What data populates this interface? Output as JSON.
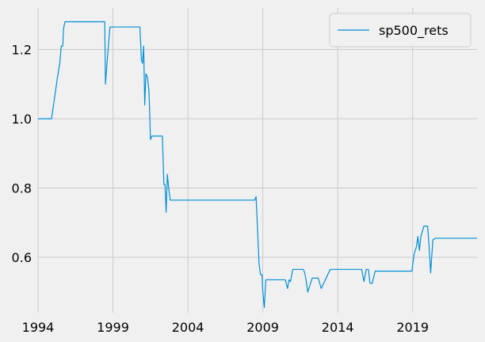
{
  "chart_data": {
    "type": "line",
    "title": "",
    "xlabel": "",
    "ylabel": "",
    "xlim": [
      1994.0,
      2023.3
    ],
    "ylim": [
      0.44,
      1.32
    ],
    "grid": true,
    "legend_position": "top-right",
    "x_ticks": [
      1994,
      1999,
      2004,
      2009,
      2014,
      2019
    ],
    "x_tick_labels": [
      "1994",
      "1999",
      "2004",
      "2009",
      "2014",
      "2019"
    ],
    "y_ticks": [
      0.6,
      0.8,
      1.0,
      1.2
    ],
    "y_tick_labels": [
      "0.6",
      "0.8",
      "1.0",
      "1.2"
    ],
    "series": [
      {
        "name": "sp500_rets",
        "color": "#008fd5",
        "x": [
          1994.0,
          1994.9,
          1995.1,
          1995.3,
          1995.45,
          1995.55,
          1995.65,
          1995.7,
          1995.8,
          1995.9,
          1996.0,
          1996.5,
          1997.0,
          1997.5,
          1998.0,
          1998.45,
          1998.5,
          1998.6,
          1998.8,
          1999.0,
          1999.5,
          2000.0,
          2000.5,
          2000.8,
          2000.9,
          2000.97,
          2001.05,
          2001.12,
          2001.2,
          2001.3,
          2001.4,
          2001.45,
          2001.5,
          2001.6,
          2002.0,
          2002.3,
          2002.4,
          2002.47,
          2002.55,
          2002.63,
          2002.72,
          2002.82,
          2003.0,
          2004.0,
          2005.0,
          2006.0,
          2007.0,
          2008.0,
          2008.45,
          2008.55,
          2008.65,
          2008.75,
          2008.85,
          2008.95,
          2009.0,
          2009.1,
          2009.2,
          2009.5,
          2010.0,
          2010.5,
          2010.65,
          2010.75,
          2010.85,
          2011.0,
          2011.5,
          2011.7,
          2011.8,
          2011.9,
          2012.0,
          2012.3,
          2012.4,
          2012.5,
          2012.7,
          2012.9,
          2013.5,
          2014.0,
          2014.5,
          2015.0,
          2015.5,
          2015.6,
          2015.75,
          2015.9,
          2016.05,
          2016.15,
          2016.3,
          2016.5,
          2017.0,
          2017.5,
          2018.0,
          2018.5,
          2018.8,
          2018.95,
          2019.1,
          2019.25,
          2019.35,
          2019.45,
          2019.55,
          2019.65,
          2019.75,
          2019.85,
          2020.0,
          2020.1,
          2020.2,
          2020.35,
          2020.5,
          2021.0,
          2022.0,
          2023.3
        ],
        "y": [
          1.0,
          1.0,
          1.06,
          1.12,
          1.16,
          1.21,
          1.21,
          1.26,
          1.28,
          1.28,
          1.28,
          1.28,
          1.28,
          1.28,
          1.28,
          1.28,
          1.1,
          1.16,
          1.265,
          1.265,
          1.265,
          1.265,
          1.265,
          1.265,
          1.17,
          1.16,
          1.21,
          1.04,
          1.13,
          1.12,
          1.08,
          1.02,
          0.94,
          0.95,
          0.95,
          0.95,
          0.81,
          0.81,
          0.73,
          0.84,
          0.8,
          0.765,
          0.765,
          0.765,
          0.765,
          0.765,
          0.765,
          0.765,
          0.765,
          0.775,
          0.68,
          0.58,
          0.55,
          0.55,
          0.5,
          0.455,
          0.535,
          0.535,
          0.535,
          0.535,
          0.51,
          0.535,
          0.53,
          0.565,
          0.565,
          0.565,
          0.555,
          0.53,
          0.5,
          0.54,
          0.54,
          0.54,
          0.54,
          0.51,
          0.565,
          0.565,
          0.565,
          0.565,
          0.565,
          0.565,
          0.53,
          0.565,
          0.565,
          0.525,
          0.525,
          0.56,
          0.56,
          0.56,
          0.56,
          0.56,
          0.56,
          0.56,
          0.61,
          0.63,
          0.66,
          0.62,
          0.66,
          0.675,
          0.69,
          0.69,
          0.69,
          0.63,
          0.555,
          0.65,
          0.655,
          0.655,
          0.655,
          0.655
        ]
      }
    ]
  }
}
